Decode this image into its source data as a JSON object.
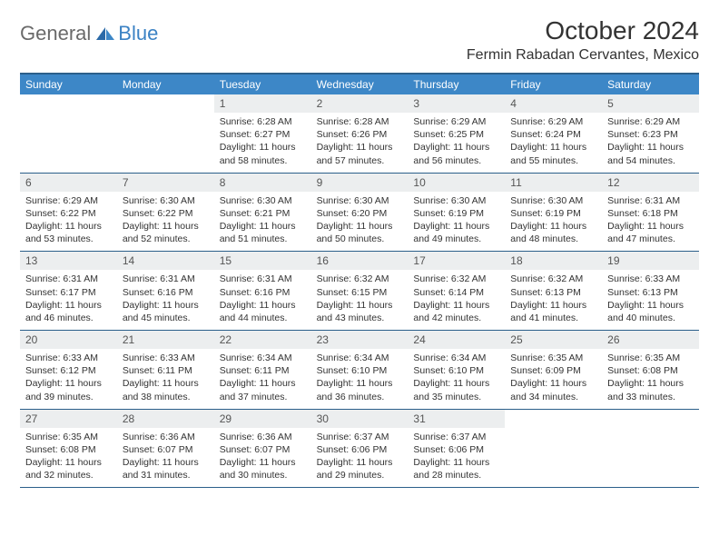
{
  "logo": {
    "general": "General",
    "blue": "Blue"
  },
  "title": "October 2024",
  "location": "Fermin Rabadan Cervantes, Mexico",
  "colors": {
    "header_bg": "#3d87c7",
    "header_text": "#ffffff",
    "border": "#2b5f8a",
    "daynum_bg": "#eceeef",
    "logo_gray": "#6a6a6a",
    "logo_blue": "#3b82c4"
  },
  "layout": {
    "columns": 7,
    "day_header_fontsize": 12,
    "daynum_fontsize": 12,
    "body_fontsize": 10.5,
    "title_fontsize": 28,
    "location_fontsize": 16
  },
  "day_names": [
    "Sunday",
    "Monday",
    "Tuesday",
    "Wednesday",
    "Thursday",
    "Friday",
    "Saturday"
  ],
  "weeks": [
    [
      {
        "n": "",
        "sunrise": "",
        "sunset": "",
        "daylight": ""
      },
      {
        "n": "",
        "sunrise": "",
        "sunset": "",
        "daylight": ""
      },
      {
        "n": "1",
        "sunrise": "Sunrise: 6:28 AM",
        "sunset": "Sunset: 6:27 PM",
        "daylight": "Daylight: 11 hours and 58 minutes."
      },
      {
        "n": "2",
        "sunrise": "Sunrise: 6:28 AM",
        "sunset": "Sunset: 6:26 PM",
        "daylight": "Daylight: 11 hours and 57 minutes."
      },
      {
        "n": "3",
        "sunrise": "Sunrise: 6:29 AM",
        "sunset": "Sunset: 6:25 PM",
        "daylight": "Daylight: 11 hours and 56 minutes."
      },
      {
        "n": "4",
        "sunrise": "Sunrise: 6:29 AM",
        "sunset": "Sunset: 6:24 PM",
        "daylight": "Daylight: 11 hours and 55 minutes."
      },
      {
        "n": "5",
        "sunrise": "Sunrise: 6:29 AM",
        "sunset": "Sunset: 6:23 PM",
        "daylight": "Daylight: 11 hours and 54 minutes."
      }
    ],
    [
      {
        "n": "6",
        "sunrise": "Sunrise: 6:29 AM",
        "sunset": "Sunset: 6:22 PM",
        "daylight": "Daylight: 11 hours and 53 minutes."
      },
      {
        "n": "7",
        "sunrise": "Sunrise: 6:30 AM",
        "sunset": "Sunset: 6:22 PM",
        "daylight": "Daylight: 11 hours and 52 minutes."
      },
      {
        "n": "8",
        "sunrise": "Sunrise: 6:30 AM",
        "sunset": "Sunset: 6:21 PM",
        "daylight": "Daylight: 11 hours and 51 minutes."
      },
      {
        "n": "9",
        "sunrise": "Sunrise: 6:30 AM",
        "sunset": "Sunset: 6:20 PM",
        "daylight": "Daylight: 11 hours and 50 minutes."
      },
      {
        "n": "10",
        "sunrise": "Sunrise: 6:30 AM",
        "sunset": "Sunset: 6:19 PM",
        "daylight": "Daylight: 11 hours and 49 minutes."
      },
      {
        "n": "11",
        "sunrise": "Sunrise: 6:30 AM",
        "sunset": "Sunset: 6:19 PM",
        "daylight": "Daylight: 11 hours and 48 minutes."
      },
      {
        "n": "12",
        "sunrise": "Sunrise: 6:31 AM",
        "sunset": "Sunset: 6:18 PM",
        "daylight": "Daylight: 11 hours and 47 minutes."
      }
    ],
    [
      {
        "n": "13",
        "sunrise": "Sunrise: 6:31 AM",
        "sunset": "Sunset: 6:17 PM",
        "daylight": "Daylight: 11 hours and 46 minutes."
      },
      {
        "n": "14",
        "sunrise": "Sunrise: 6:31 AM",
        "sunset": "Sunset: 6:16 PM",
        "daylight": "Daylight: 11 hours and 45 minutes."
      },
      {
        "n": "15",
        "sunrise": "Sunrise: 6:31 AM",
        "sunset": "Sunset: 6:16 PM",
        "daylight": "Daylight: 11 hours and 44 minutes."
      },
      {
        "n": "16",
        "sunrise": "Sunrise: 6:32 AM",
        "sunset": "Sunset: 6:15 PM",
        "daylight": "Daylight: 11 hours and 43 minutes."
      },
      {
        "n": "17",
        "sunrise": "Sunrise: 6:32 AM",
        "sunset": "Sunset: 6:14 PM",
        "daylight": "Daylight: 11 hours and 42 minutes."
      },
      {
        "n": "18",
        "sunrise": "Sunrise: 6:32 AM",
        "sunset": "Sunset: 6:13 PM",
        "daylight": "Daylight: 11 hours and 41 minutes."
      },
      {
        "n": "19",
        "sunrise": "Sunrise: 6:33 AM",
        "sunset": "Sunset: 6:13 PM",
        "daylight": "Daylight: 11 hours and 40 minutes."
      }
    ],
    [
      {
        "n": "20",
        "sunrise": "Sunrise: 6:33 AM",
        "sunset": "Sunset: 6:12 PM",
        "daylight": "Daylight: 11 hours and 39 minutes."
      },
      {
        "n": "21",
        "sunrise": "Sunrise: 6:33 AM",
        "sunset": "Sunset: 6:11 PM",
        "daylight": "Daylight: 11 hours and 38 minutes."
      },
      {
        "n": "22",
        "sunrise": "Sunrise: 6:34 AM",
        "sunset": "Sunset: 6:11 PM",
        "daylight": "Daylight: 11 hours and 37 minutes."
      },
      {
        "n": "23",
        "sunrise": "Sunrise: 6:34 AM",
        "sunset": "Sunset: 6:10 PM",
        "daylight": "Daylight: 11 hours and 36 minutes."
      },
      {
        "n": "24",
        "sunrise": "Sunrise: 6:34 AM",
        "sunset": "Sunset: 6:10 PM",
        "daylight": "Daylight: 11 hours and 35 minutes."
      },
      {
        "n": "25",
        "sunrise": "Sunrise: 6:35 AM",
        "sunset": "Sunset: 6:09 PM",
        "daylight": "Daylight: 11 hours and 34 minutes."
      },
      {
        "n": "26",
        "sunrise": "Sunrise: 6:35 AM",
        "sunset": "Sunset: 6:08 PM",
        "daylight": "Daylight: 11 hours and 33 minutes."
      }
    ],
    [
      {
        "n": "27",
        "sunrise": "Sunrise: 6:35 AM",
        "sunset": "Sunset: 6:08 PM",
        "daylight": "Daylight: 11 hours and 32 minutes."
      },
      {
        "n": "28",
        "sunrise": "Sunrise: 6:36 AM",
        "sunset": "Sunset: 6:07 PM",
        "daylight": "Daylight: 11 hours and 31 minutes."
      },
      {
        "n": "29",
        "sunrise": "Sunrise: 6:36 AM",
        "sunset": "Sunset: 6:07 PM",
        "daylight": "Daylight: 11 hours and 30 minutes."
      },
      {
        "n": "30",
        "sunrise": "Sunrise: 6:37 AM",
        "sunset": "Sunset: 6:06 PM",
        "daylight": "Daylight: 11 hours and 29 minutes."
      },
      {
        "n": "31",
        "sunrise": "Sunrise: 6:37 AM",
        "sunset": "Sunset: 6:06 PM",
        "daylight": "Daylight: 11 hours and 28 minutes."
      },
      {
        "n": "",
        "sunrise": "",
        "sunset": "",
        "daylight": ""
      },
      {
        "n": "",
        "sunrise": "",
        "sunset": "",
        "daylight": ""
      }
    ]
  ]
}
